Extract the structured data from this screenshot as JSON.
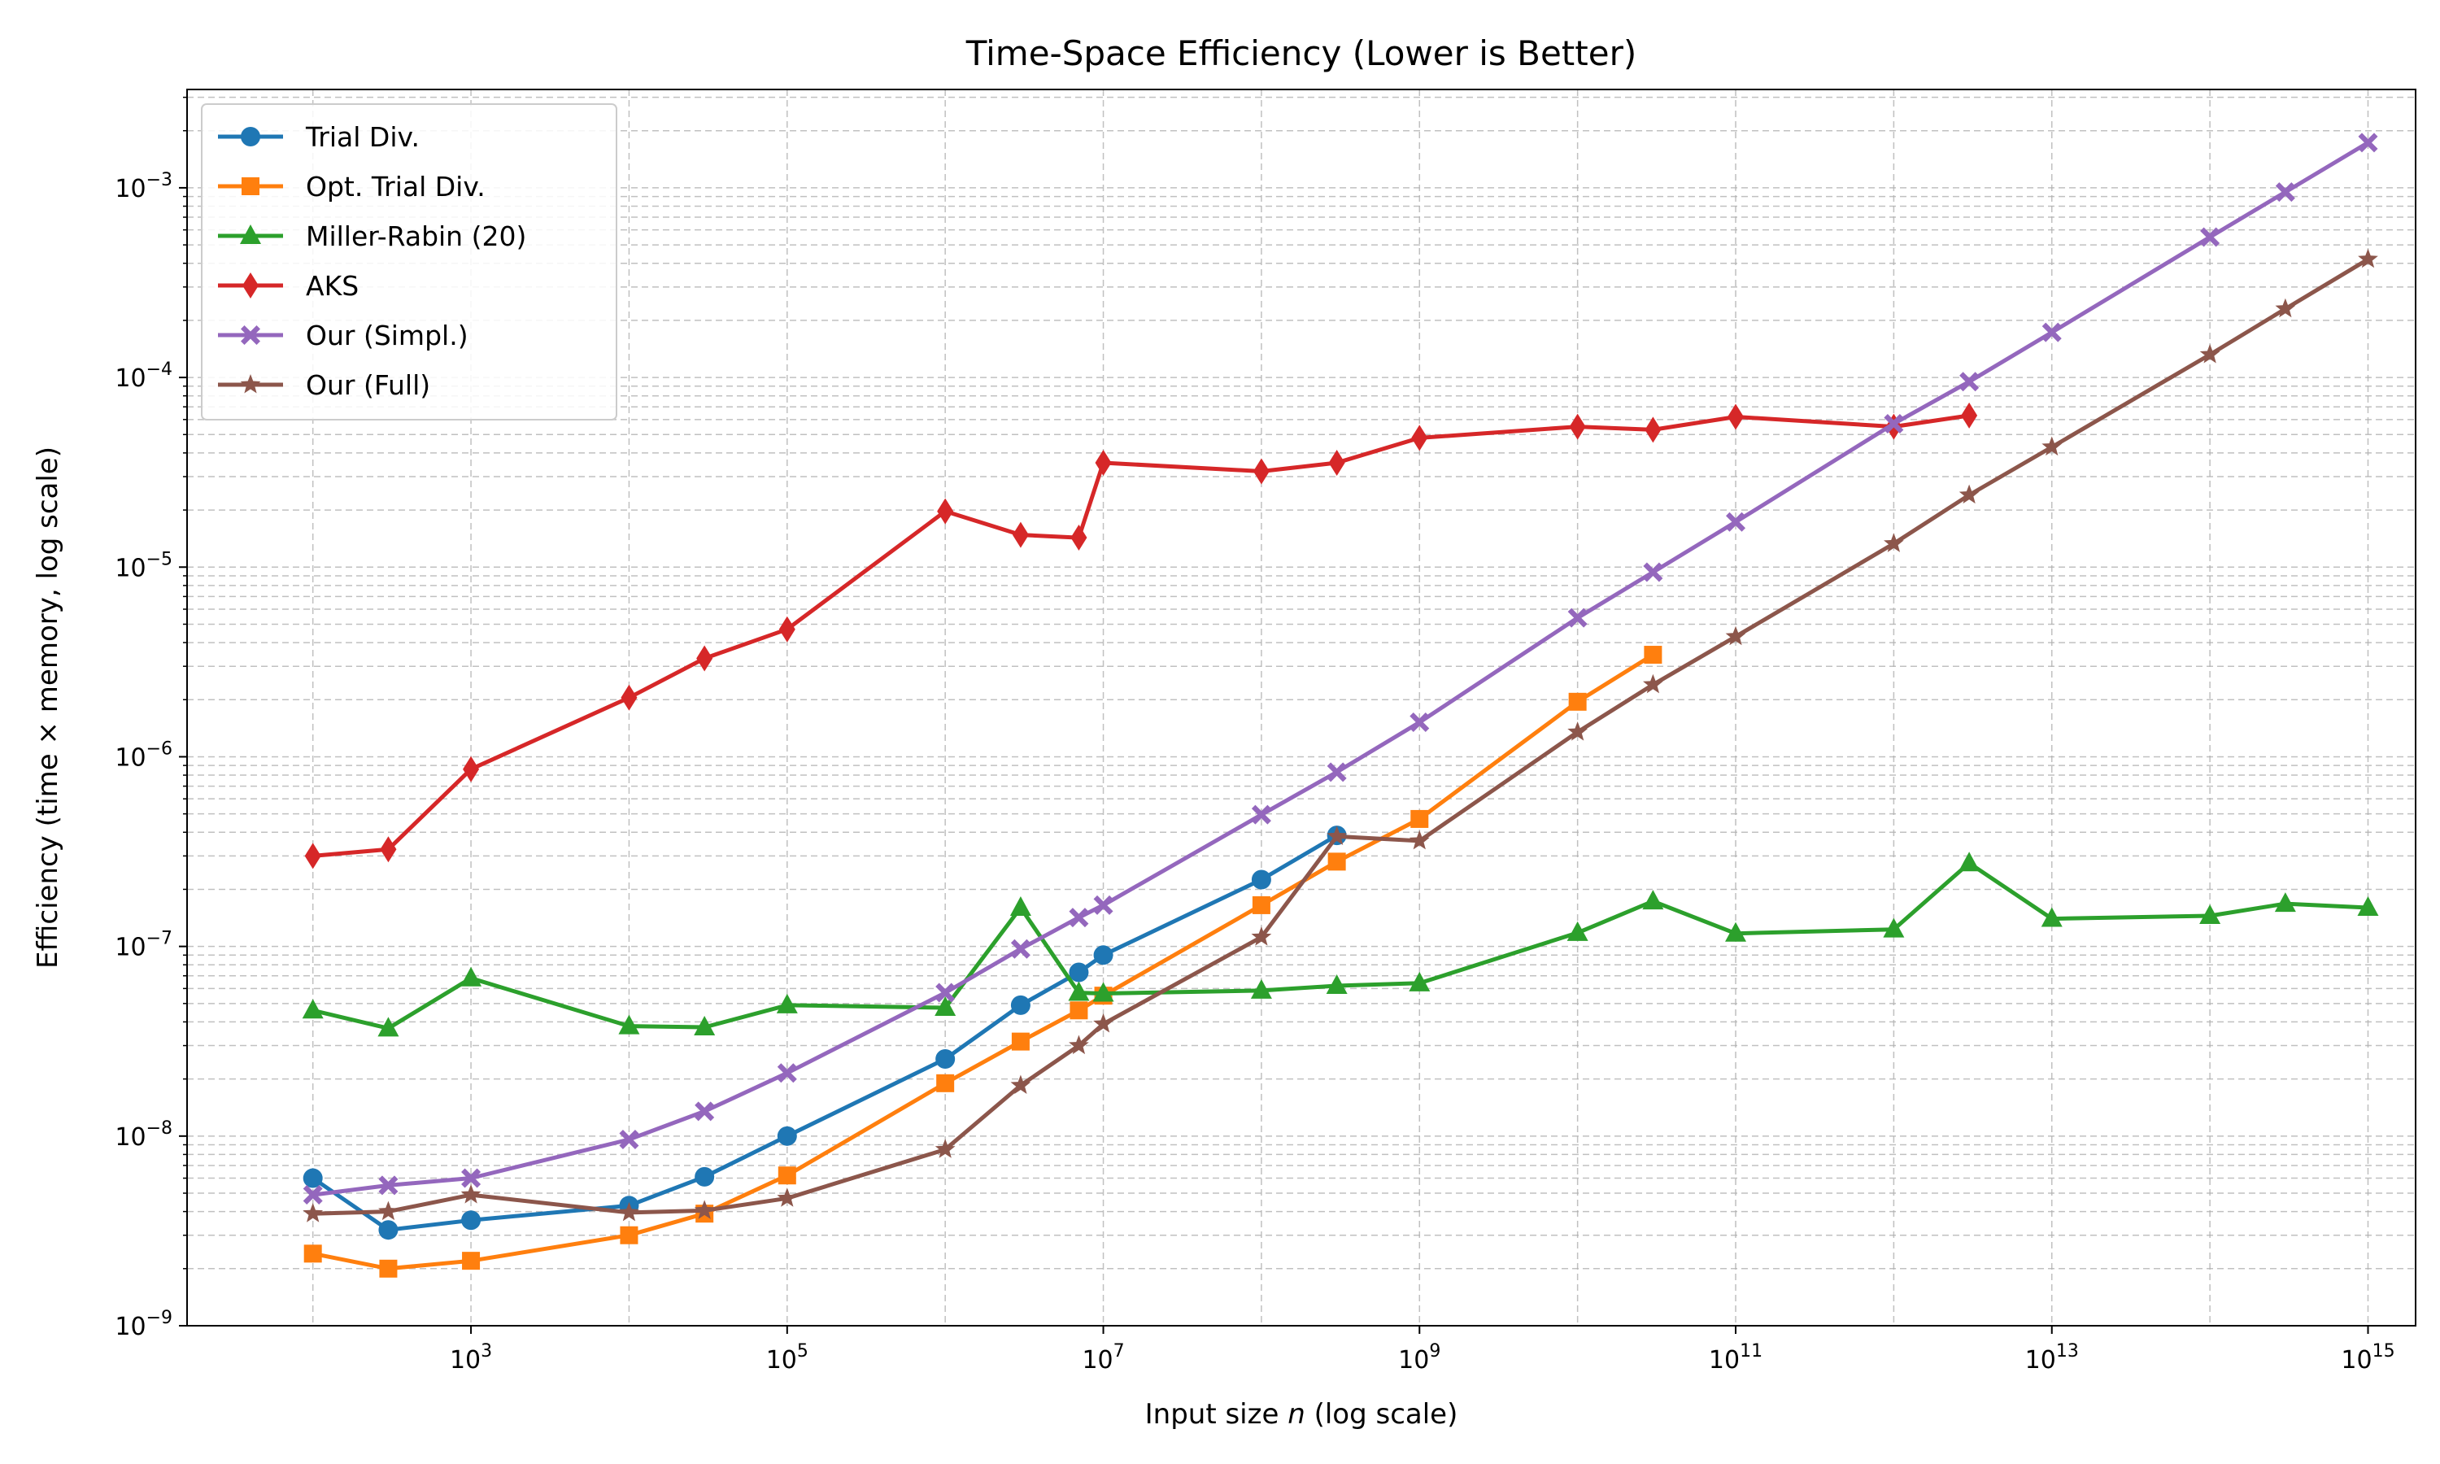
{
  "chart_data": {
    "type": "line",
    "title": "Time-Space Efficiency (Lower is Better)",
    "xlabel": "Input size n (log scale)",
    "ylabel": "Efficiency (time × memory, log scale)",
    "x_scale": "log",
    "y_scale": "log",
    "xlim": [
      16.0,
      2000000000000000.0
    ],
    "ylim": [
      1e-09,
      0.0033
    ],
    "x_tick_values": [
      1000.0,
      100000.0,
      10000000.0,
      1000000000.0,
      100000000000.0,
      10000000000000.0,
      1000000000000000.0
    ],
    "x_tick_exponents": [
      "3",
      "5",
      "7",
      "9",
      "11",
      "13",
      "15"
    ],
    "y_tick_values": [
      1e-09,
      1e-08,
      1e-07,
      1e-06,
      1e-05,
      0.0001,
      0.001
    ],
    "y_tick_exponents": [
      "−9",
      "−8",
      "−7",
      "−6",
      "−5",
      "−4",
      "−3"
    ],
    "tick_base": "10",
    "grid": true,
    "legend_position": "top-left",
    "series": [
      {
        "name": "Trial Div.",
        "color": "#1f77b4",
        "marker": "circle",
        "points": [
          [
            100.0,
            6e-09
          ],
          [
            300.0,
            3.2e-09
          ],
          [
            1000.0,
            3.6e-09
          ],
          [
            10000.0,
            4.3e-09
          ],
          [
            30000.0,
            6.1e-09
          ],
          [
            100000.0,
            1e-08
          ],
          [
            1000000.0,
            2.55e-08
          ],
          [
            3000000.0,
            4.9e-08
          ],
          [
            7000000.0,
            7.3e-08
          ],
          [
            10000000.0,
            9e-08
          ],
          [
            100000000.0,
            2.25e-07
          ],
          [
            300000000.0,
            3.85e-07
          ]
        ]
      },
      {
        "name": "Opt. Trial Div.",
        "color": "#ff7f0e",
        "marker": "square",
        "points": [
          [
            100.0,
            2.4e-09
          ],
          [
            300.0,
            2e-09
          ],
          [
            1000.0,
            2.2e-09
          ],
          [
            10000.0,
            3e-09
          ],
          [
            30000.0,
            3.9e-09
          ],
          [
            100000.0,
            6.2e-09
          ],
          [
            1000000.0,
            1.9e-08
          ],
          [
            3000000.0,
            3.15e-08
          ],
          [
            7000000.0,
            4.6e-08
          ],
          [
            10000000.0,
            5.5e-08
          ],
          [
            100000000.0,
            1.65e-07
          ],
          [
            300000000.0,
            2.8e-07
          ],
          [
            1000000000.0,
            4.7e-07
          ],
          [
            10000000000.0,
            1.95e-06
          ],
          [
            30000000000.0,
            3.45e-06
          ]
        ]
      },
      {
        "name": "Miller-Rabin (20)",
        "color": "#2ca02c",
        "marker": "triangle",
        "points": [
          [
            100.0,
            4.6e-08
          ],
          [
            300.0,
            3.7e-08
          ],
          [
            1000.0,
            6.8e-08
          ],
          [
            10000.0,
            3.8e-08
          ],
          [
            30000.0,
            3.75e-08
          ],
          [
            100000.0,
            4.9e-08
          ],
          [
            1000000.0,
            4.75e-08
          ],
          [
            3000000.0,
            1.6e-07
          ],
          [
            7000000.0,
            5.7e-08
          ],
          [
            10000000.0,
            5.65e-08
          ],
          [
            100000000.0,
            5.85e-08
          ],
          [
            300000000.0,
            6.2e-08
          ],
          [
            1000000000.0,
            6.4e-08
          ],
          [
            10000000000.0,
            1.18e-07
          ],
          [
            30000000000.0,
            1.73e-07
          ],
          [
            100000000000.0,
            1.17e-07
          ],
          [
            1000000000000.0,
            1.23e-07
          ],
          [
            3000000000000.0,
            2.75e-07
          ],
          [
            10000000000000.0,
            1.4e-07
          ],
          [
            100000000000000.0,
            1.45e-07
          ],
          [
            300000000000000.0,
            1.68e-07
          ],
          [
            1000000000000000.0,
            1.6e-07
          ]
        ]
      },
      {
        "name": "AKS",
        "color": "#d62728",
        "marker": "diamond",
        "points": [
          [
            100.0,
            3e-07
          ],
          [
            300.0,
            3.25e-07
          ],
          [
            1000.0,
            8.6e-07
          ],
          [
            10000.0,
            2.05e-06
          ],
          [
            30000.0,
            3.3e-06
          ],
          [
            100000.0,
            4.7e-06
          ],
          [
            1000000.0,
            1.97e-05
          ],
          [
            3000000.0,
            1.48e-05
          ],
          [
            7000000.0,
            1.43e-05
          ],
          [
            10000000.0,
            3.55e-05
          ],
          [
            100000000.0,
            3.2e-05
          ],
          [
            300000000.0,
            3.55e-05
          ],
          [
            1000000000.0,
            4.8e-05
          ],
          [
            10000000000.0,
            5.5e-05
          ],
          [
            30000000000.0,
            5.3e-05
          ],
          [
            100000000000.0,
            6.2e-05
          ],
          [
            1000000000000.0,
            5.5e-05
          ],
          [
            3000000000000.0,
            6.3e-05
          ]
        ]
      },
      {
        "name": "Our (Simpl.)",
        "color": "#9467bd",
        "marker": "x",
        "points": [
          [
            100.0,
            4.9e-09
          ],
          [
            300.0,
            5.5e-09
          ],
          [
            1000.0,
            6e-09
          ],
          [
            10000.0,
            9.6e-09
          ],
          [
            30000.0,
            1.35e-08
          ],
          [
            100000.0,
            2.15e-08
          ],
          [
            1000000.0,
            5.7e-08
          ],
          [
            3000000.0,
            9.7e-08
          ],
          [
            7000000.0,
            1.42e-07
          ],
          [
            10000000.0,
            1.65e-07
          ],
          [
            100000000.0,
            4.95e-07
          ],
          [
            300000000.0,
            8.3e-07
          ],
          [
            1000000000.0,
            1.52e-06
          ],
          [
            10000000000.0,
            5.4e-06
          ],
          [
            30000000000.0,
            9.4e-06
          ],
          [
            100000000000.0,
            1.73e-05
          ],
          [
            1000000000000.0,
            5.7e-05
          ],
          [
            3000000000000.0,
            9.5e-05
          ],
          [
            10000000000000.0,
            0.000173
          ],
          [
            100000000000000.0,
            0.00055
          ],
          [
            300000000000000.0,
            0.00095
          ],
          [
            1000000000000000.0,
            0.00173
          ]
        ]
      },
      {
        "name": "Our (Full)",
        "color": "#8c564b",
        "marker": "star",
        "points": [
          [
            100.0,
            3.9e-09
          ],
          [
            300.0,
            4e-09
          ],
          [
            1000.0,
            4.9e-09
          ],
          [
            10000.0,
            3.95e-09
          ],
          [
            30000.0,
            4.05e-09
          ],
          [
            100000.0,
            4.7e-09
          ],
          [
            1000000.0,
            8.5e-09
          ],
          [
            3000000.0,
            1.85e-08
          ],
          [
            7000000.0,
            3e-08
          ],
          [
            10000000.0,
            3.9e-08
          ],
          [
            100000000.0,
            1.12e-07
          ],
          [
            300000000.0,
            3.8e-07
          ],
          [
            1000000000.0,
            3.6e-07
          ],
          [
            10000000000.0,
            1.35e-06
          ],
          [
            30000000000.0,
            2.4e-06
          ],
          [
            100000000000.0,
            4.3e-06
          ],
          [
            1000000000000.0,
            1.33e-05
          ],
          [
            3000000000000.0,
            2.4e-05
          ],
          [
            10000000000000.0,
            4.3e-05
          ],
          [
            100000000000000.0,
            0.000132
          ],
          [
            300000000000000.0,
            0.00023
          ],
          [
            1000000000000000.0,
            0.00042
          ]
        ]
      }
    ]
  }
}
